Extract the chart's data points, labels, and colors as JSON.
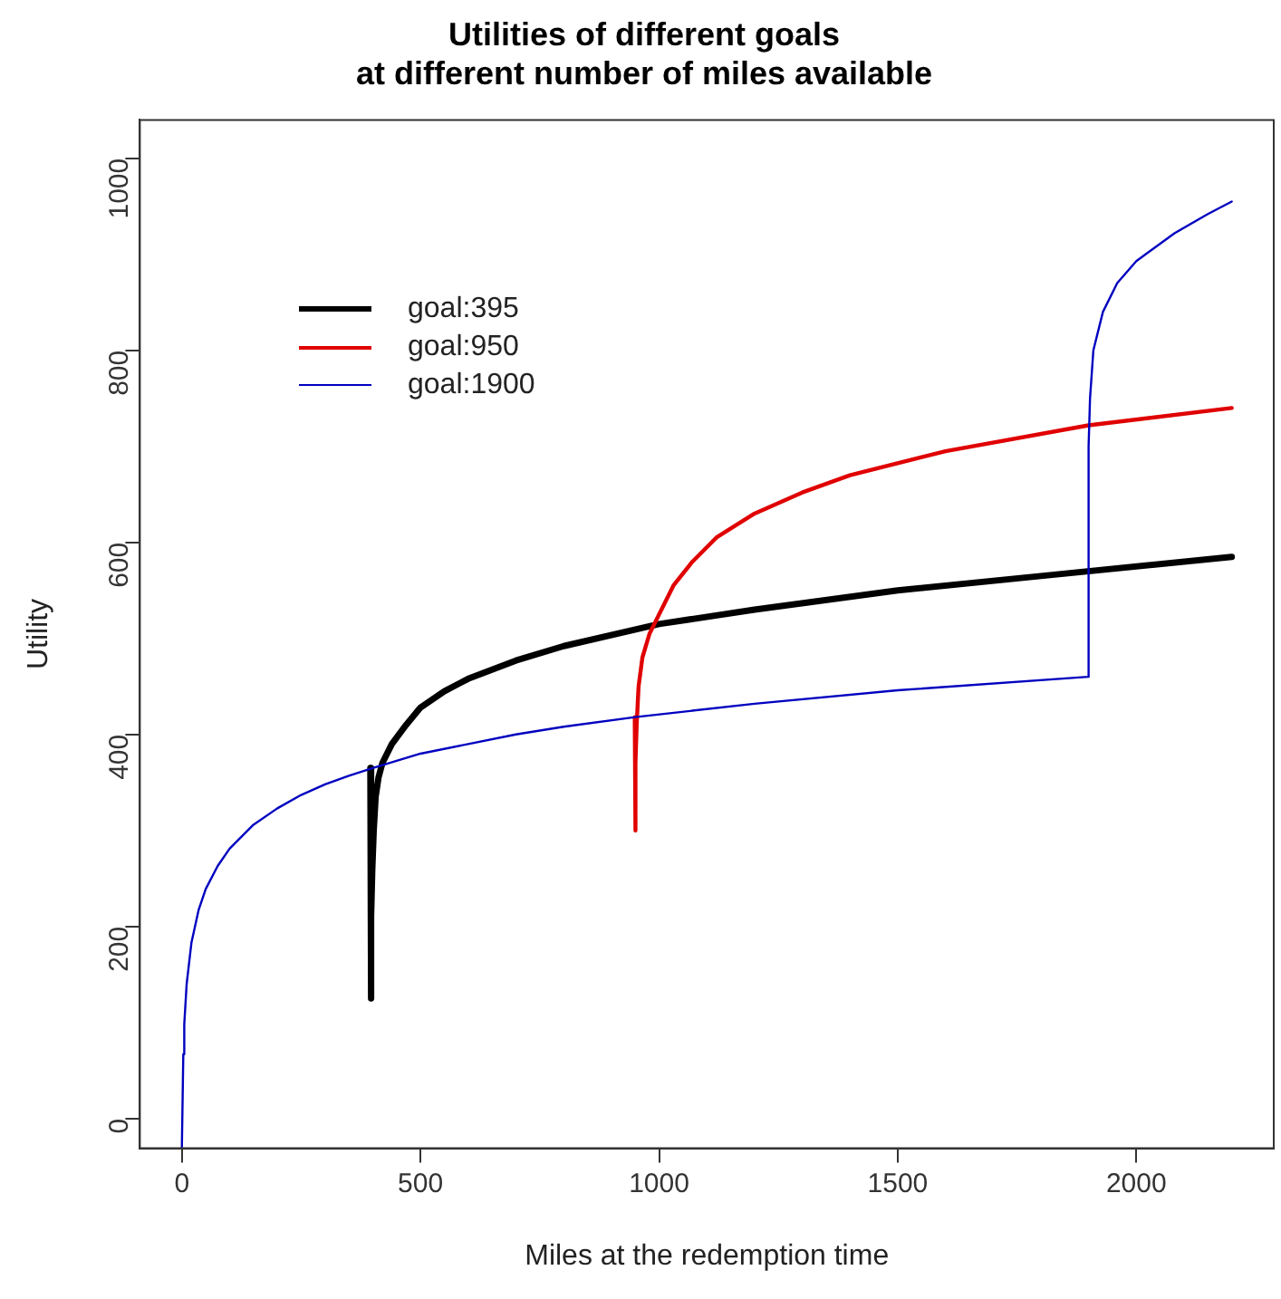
{
  "chart_data": {
    "type": "line",
    "title": "Utilities of different goals\nat different number of miles available",
    "xlabel": "Miles at the redemption time",
    "ylabel": "Utility",
    "xlim": [
      -88,
      2288
    ],
    "ylim": [
      -31,
      1040
    ],
    "xticks": [
      0,
      500,
      1000,
      1500,
      2000
    ],
    "yticks": [
      0,
      200,
      400,
      600,
      800,
      1000
    ],
    "grid": false,
    "legend": "top left",
    "marker": "none",
    "line_style": "solid",
    "series": [
      {
        "name": "goal:395",
        "color": "#000000",
        "x": [
          395,
          396,
          397,
          399,
          402,
          406,
          412,
          420,
          440,
          470,
          500,
          550,
          600,
          700,
          800,
          1000,
          1200,
          1500,
          1800,
          2200
        ],
        "values": [
          365,
          125,
          210,
          260,
          300,
          335,
          355,
          370,
          390,
          410,
          428,
          445,
          458,
          477,
          492,
          515,
          530,
          550,
          565,
          585
        ]
      },
      {
        "name": "goal:950",
        "color": "#e00000",
        "x": [
          949,
          950,
          951,
          953,
          957,
          965,
          980,
          1000,
          1030,
          1070,
          1120,
          1200,
          1300,
          1400,
          1600,
          1900,
          2200
        ],
        "values": [
          418,
          300,
          370,
          410,
          450,
          480,
          505,
          525,
          555,
          580,
          605,
          630,
          652,
          670,
          695,
          722,
          740
        ]
      },
      {
        "name": "goal:1900",
        "color": "#0000c0",
        "x": [
          0,
          3,
          5,
          10,
          20,
          35,
          50,
          75,
          100,
          150,
          200,
          250,
          300,
          350,
          400,
          500,
          600,
          700,
          800,
          950,
          1200,
          1500,
          1899,
          1900,
          1903,
          1910,
          1930,
          1960,
          2000,
          2080,
          2150,
          2200
        ],
        "values": [
          -30,
          67,
          98,
          140,
          183,
          217,
          239,
          263,
          281,
          306,
          323,
          337,
          348,
          357,
          365,
          380,
          390,
          400,
          408,
          418,
          432,
          446,
          460,
          700,
          750,
          800,
          840,
          870,
          893,
          922,
          942,
          955
        ]
      }
    ]
  }
}
